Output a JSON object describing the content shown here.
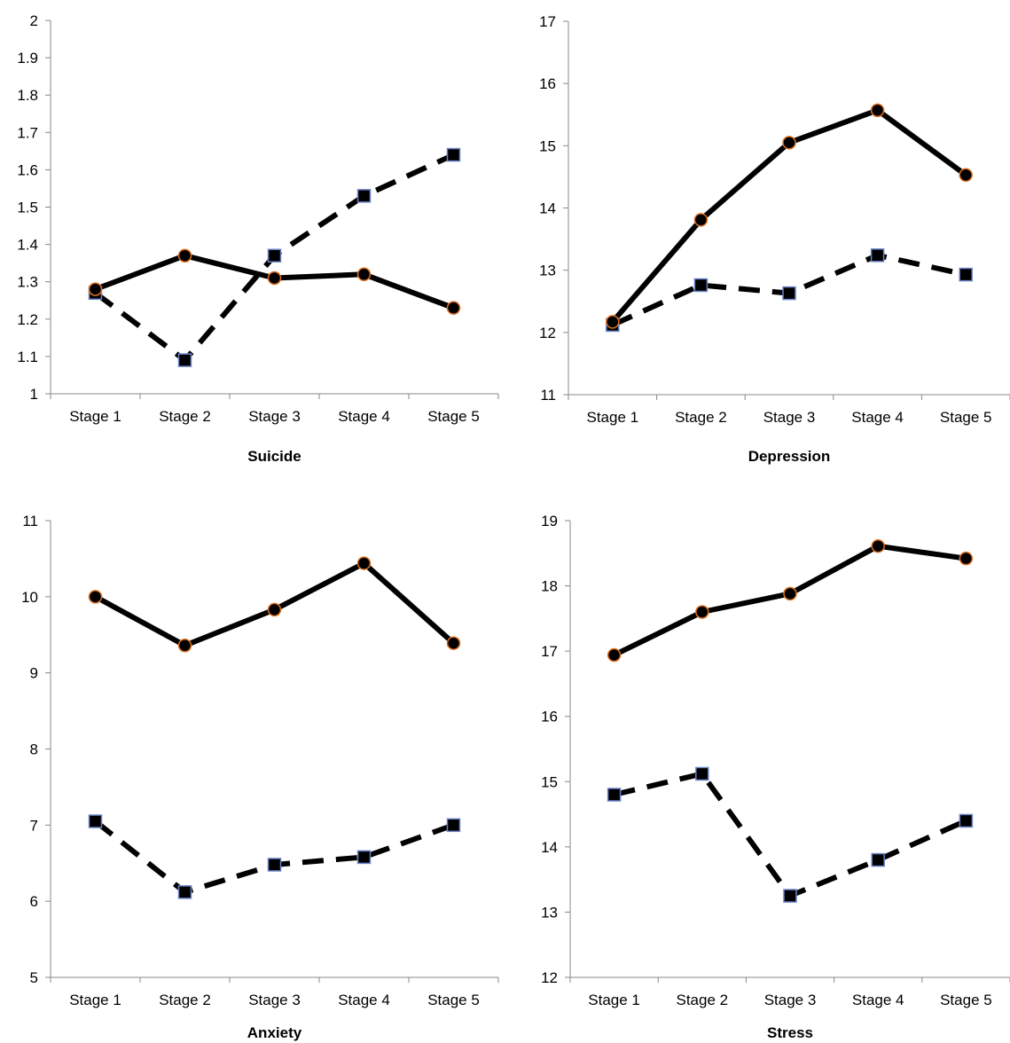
{
  "chart_data": [
    {
      "type": "line",
      "title": "Suicide",
      "categories": [
        "Stage 1",
        "Stage 2",
        "Stage 3",
        "Stage 4",
        "Stage 5"
      ],
      "ylim": [
        1,
        2
      ],
      "yticks": [
        1,
        1.1,
        1.2,
        1.3,
        1.4,
        1.5,
        1.6,
        1.7,
        1.8,
        1.9,
        2
      ],
      "yticklabels": [
        "1",
        "1.1",
        "1.2",
        "1.3",
        "1.4",
        "1.5",
        "1.6",
        "1.7",
        "1.8",
        "1.9",
        "2"
      ],
      "grid": false,
      "series": [
        {
          "style": "solid",
          "marker": "circle",
          "values": [
            1.28,
            1.37,
            1.31,
            1.32,
            1.23
          ]
        },
        {
          "style": "dashed",
          "marker": "square",
          "values": [
            1.27,
            1.09,
            1.37,
            1.53,
            1.64
          ]
        }
      ]
    },
    {
      "type": "line",
      "title": "Depression",
      "categories": [
        "Stage 1",
        "Stage 2",
        "Stage 3",
        "Stage 4",
        "Stage 5"
      ],
      "ylim": [
        11,
        17
      ],
      "yticks": [
        11,
        12,
        13,
        14,
        15,
        16,
        17
      ],
      "yticklabels": [
        "11",
        "12",
        "13",
        "14",
        "15",
        "16",
        "17"
      ],
      "grid": false,
      "series": [
        {
          "style": "solid",
          "marker": "circle",
          "values": [
            12.17,
            13.81,
            15.05,
            15.57,
            14.53
          ]
        },
        {
          "style": "dashed",
          "marker": "square",
          "values": [
            12.12,
            12.76,
            12.63,
            13.24,
            12.93
          ]
        }
      ]
    },
    {
      "type": "line",
      "title": "Anxiety",
      "categories": [
        "Stage 1",
        "Stage 2",
        "Stage 3",
        "Stage 4",
        "Stage 5"
      ],
      "ylim": [
        5,
        11
      ],
      "yticks": [
        5,
        6,
        7,
        8,
        9,
        10,
        11
      ],
      "yticklabels": [
        "5",
        "6",
        "7",
        "8",
        "9",
        "10",
        "11"
      ],
      "grid": false,
      "series": [
        {
          "style": "solid",
          "marker": "circle",
          "values": [
            10.0,
            9.36,
            9.83,
            10.44,
            9.39
          ]
        },
        {
          "style": "dashed",
          "marker": "square",
          "values": [
            7.05,
            6.12,
            6.48,
            6.58,
            7.0
          ]
        }
      ]
    },
    {
      "type": "line",
      "title": "Stress",
      "categories": [
        "Stage 1",
        "Stage 2",
        "Stage 3",
        "Stage 4",
        "Stage 5"
      ],
      "ylim": [
        12,
        19
      ],
      "yticks": [
        12,
        13,
        14,
        15,
        16,
        17,
        18,
        19
      ],
      "yticklabels": [
        "12",
        "13",
        "14",
        "15",
        "16",
        "17",
        "18",
        "19"
      ],
      "grid": false,
      "series": [
        {
          "style": "solid",
          "marker": "circle",
          "values": [
            16.94,
            17.6,
            17.88,
            18.61,
            18.42
          ]
        },
        {
          "style": "dashed",
          "marker": "square",
          "values": [
            14.8,
            15.12,
            13.25,
            13.8,
            14.4
          ]
        }
      ]
    }
  ],
  "colors": {
    "line": "#000000",
    "circle_fill": "#000000",
    "circle_edge": "#e07020",
    "square_fill": "#000000",
    "square_edge": "#6a82c8",
    "axis": "#888888"
  }
}
